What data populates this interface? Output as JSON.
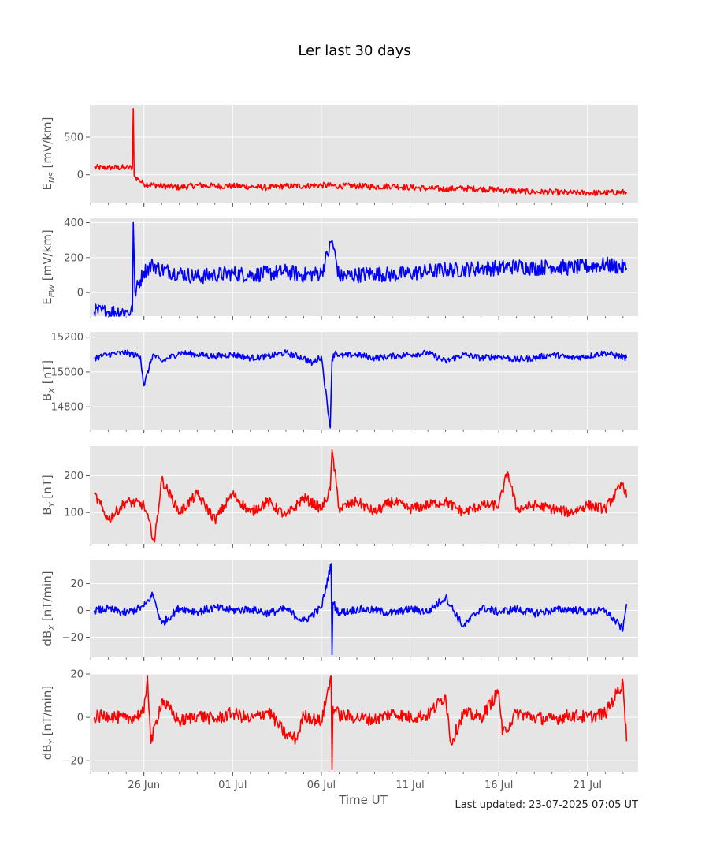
{
  "figure": {
    "title": "Ler last 30 days",
    "xlabel": "Time UT",
    "footer": "Last updated: 23-07-2025 07:05 UT"
  },
  "chart_data": {
    "type": "line",
    "title": "Ler last 30 days",
    "xlabel": "Time UT",
    "x_unit": "days since 23 Jun 2025 00:00 UT",
    "xlim": [
      -0.05,
      30.85
    ],
    "x_ticks": [
      {
        "label": "26 Jun",
        "x": 3
      },
      {
        "label": "01 Jul",
        "x": 8
      },
      {
        "label": "06 Jul",
        "x": 13
      },
      {
        "label": "11 Jul",
        "x": 18
      },
      {
        "label": "16 Jul",
        "x": 23
      },
      {
        "label": "21 Jul",
        "x": 28
      }
    ],
    "grid": true,
    "panels": [
      {
        "ylabel_base": "E",
        "ylabel_sub": "NS",
        "ylabel_unit": " [mV/km]",
        "color": "#ff0000",
        "ylim": [
          -370,
          930
        ],
        "yticks": [
          {
            "v": 0,
            "label": "0"
          },
          {
            "v": 500,
            "label": "500"
          }
        ],
        "series": [
          {
            "x": [
              0.2,
              1,
              2,
              2.35,
              2.4,
              2.45,
              2.5,
              3,
              4,
              5,
              6,
              7,
              8,
              9,
              10,
              11,
              12,
              13,
              14,
              15,
              16,
              17,
              18,
              19,
              20,
              21,
              22,
              23,
              24,
              25,
              26,
              27,
              28,
              29,
              30.2
            ],
            "y": [
              95,
              95,
              95,
              95,
              880,
              -10,
              -30,
              -120,
              -150,
              -170,
              -140,
              -150,
              -150,
              -160,
              -170,
              -150,
              -150,
              -140,
              -150,
              -150,
              -160,
              -150,
              -170,
              -180,
              -190,
              -180,
              -190,
              -200,
              -220,
              -230,
              -230,
              -240,
              -240,
              -240,
              -230
            ]
          }
        ]
      },
      {
        "ylabel_base": "E",
        "ylabel_sub": "EW",
        "ylabel_unit": " [mV/km]",
        "color": "#0000ff",
        "ylim": [
          -135,
          425
        ],
        "yticks": [
          {
            "v": 0,
            "label": "0"
          },
          {
            "v": 200,
            "label": "200"
          },
          {
            "v": 400,
            "label": "400"
          }
        ],
        "series": [
          {
            "x": [
              0.2,
              1,
              2,
              2.35,
              2.4,
              2.5,
              3,
              3.5,
              4,
              5,
              6,
              7,
              8,
              9,
              10,
              11,
              12,
              13,
              13.6,
              14,
              15,
              16,
              17,
              18,
              19,
              20,
              21,
              22,
              23,
              24,
              25,
              26,
              27,
              28,
              29,
              30.2
            ],
            "y": [
              -110,
              -110,
              -110,
              -110,
              400,
              0,
              120,
              160,
              130,
              110,
              90,
              100,
              110,
              100,
              110,
              120,
              100,
              110,
              300,
              90,
              100,
              110,
              100,
              110,
              120,
              130,
              130,
              140,
              140,
              150,
              140,
              150,
              140,
              150,
              160,
              140
            ]
          }
        ]
      },
      {
        "ylabel_base": "B",
        "ylabel_sub": "X",
        "ylabel_unit": " [nT]",
        "color": "#0000ff",
        "ylim": [
          14670,
          15230
        ],
        "yticks": [
          {
            "v": 14800,
            "label": "14800"
          },
          {
            "v": 15000,
            "label": "15000"
          },
          {
            "v": 15200,
            "label": "15200"
          }
        ],
        "series": [
          {
            "x": [
              0.2,
              1,
              2,
              2.8,
              3,
              3.5,
              4,
              5,
              6,
              7,
              8,
              9,
              10,
              11,
              12,
              12.5,
              13,
              13.5,
              13.6,
              13.8,
              14,
              15,
              16,
              17,
              18,
              19,
              20,
              21,
              22,
              23,
              24,
              25,
              26,
              27,
              28,
              29,
              30.2
            ],
            "y": [
              15080,
              15100,
              15110,
              15090,
              14920,
              15100,
              15060,
              15110,
              15100,
              15090,
              15100,
              15080,
              15090,
              15110,
              15080,
              15050,
              15090,
              14680,
              15070,
              15120,
              15090,
              15100,
              15080,
              15090,
              15100,
              15110,
              15060,
              15100,
              15080,
              15090,
              15070,
              15080,
              15100,
              15080,
              15090,
              15110,
              15080
            ]
          }
        ]
      },
      {
        "ylabel_base": "B",
        "ylabel_sub": "Y",
        "ylabel_unit": " [nT]",
        "color": "#ff0000",
        "ylim": [
          15,
          280
        ],
        "yticks": [
          {
            "v": 100,
            "label": "100"
          },
          {
            "v": 200,
            "label": "200"
          }
        ],
        "series": [
          {
            "x": [
              0.2,
              1,
              2,
              3,
              3.6,
              4,
              5,
              6,
              7,
              8,
              9,
              10,
              11,
              12,
              13,
              13.5,
              13.6,
              14,
              15,
              16,
              17,
              18,
              19,
              20,
              21,
              22,
              23,
              23.5,
              24,
              25,
              26,
              27,
              28,
              29,
              30,
              30.2
            ],
            "y": [
              150,
              80,
              130,
              120,
              20,
              190,
              100,
              150,
              80,
              150,
              100,
              130,
              90,
              140,
              110,
              160,
              270,
              110,
              130,
              100,
              130,
              110,
              120,
              130,
              100,
              120,
              120,
              210,
              110,
              120,
              110,
              100,
              120,
              110,
              180,
              140
            ]
          }
        ]
      },
      {
        "ylabel_base": "dB",
        "ylabel_sub": "X",
        "ylabel_unit": " [nT/min]",
        "color": "#0000ff",
        "ylim": [
          -35,
          38
        ],
        "yticks": [
          {
            "v": -20,
            "label": "−20"
          },
          {
            "v": 0,
            "label": "0"
          },
          {
            "v": 20,
            "label": "20"
          }
        ],
        "series": [
          {
            "x": [
              0.2,
              1,
              2,
              3,
              3.5,
              4,
              5,
              6,
              7,
              8,
              9,
              10,
              11,
              12,
              13,
              13.55,
              13.6,
              13.65,
              14,
              15,
              16,
              17,
              18,
              19,
              20,
              21,
              22,
              23,
              24,
              25,
              26,
              27,
              28,
              29,
              30,
              30.2
            ],
            "y": [
              0,
              1,
              -2,
              3,
              12,
              -10,
              2,
              -1,
              2,
              0,
              1,
              -2,
              1,
              -8,
              2,
              35,
              -33,
              6,
              -2,
              1,
              0,
              -2,
              1,
              -1,
              10,
              -12,
              2,
              -1,
              1,
              -2,
              0,
              1,
              -1,
              0,
              -14,
              5
            ]
          }
        ]
      },
      {
        "ylabel_base": "dB",
        "ylabel_sub": "Y",
        "ylabel_unit": " [nT/min]",
        "color": "#ff0000",
        "ylim": [
          -25,
          20
        ],
        "yticks": [
          {
            "v": -20,
            "label": "−20"
          },
          {
            "v": 0,
            "label": "0"
          },
          {
            "v": 20,
            "label": "20"
          }
        ],
        "series": [
          {
            "x": [
              0.2,
              1,
              2,
              3,
              3.2,
              3.4,
              4,
              5,
              6,
              7,
              8,
              9,
              10,
              11,
              11.6,
              12,
              13,
              13.55,
              13.6,
              13.65,
              14,
              15,
              16,
              17,
              18,
              19,
              20,
              20.3,
              21,
              22,
              23,
              23.2,
              24,
              25,
              26,
              27,
              28,
              29,
              30,
              30.2
            ],
            "y": [
              0,
              1,
              -1,
              2,
              19,
              -12,
              8,
              -2,
              1,
              -1,
              2,
              -1,
              3,
              -8,
              -10,
              1,
              -2,
              19,
              -24,
              5,
              1,
              0,
              -1,
              2,
              0,
              1,
              10,
              -12,
              2,
              0,
              12,
              -8,
              2,
              0,
              -1,
              1,
              0,
              2,
              16,
              -11
            ]
          }
        ]
      }
    ]
  }
}
